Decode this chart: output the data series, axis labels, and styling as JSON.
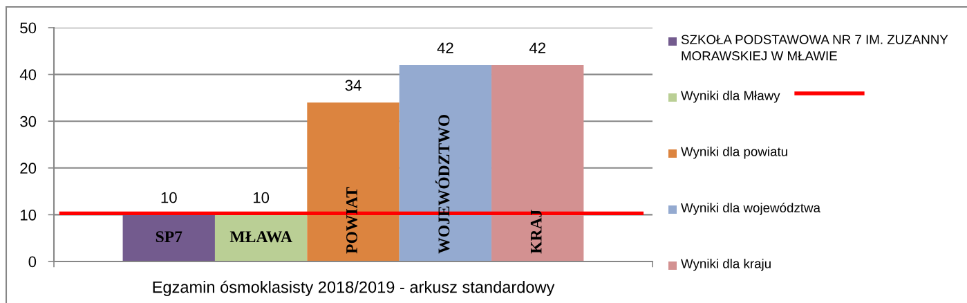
{
  "chart_data": {
    "type": "bar",
    "categories": [
      "Egzamin ósmoklasisty 2018/2019 - arkusz standardowy"
    ],
    "series": [
      {
        "name": "SZKOŁA PODSTAWOWA NR 7 IM. ZUZANNY MORAWSKIEJ W MŁAWIE",
        "color": "#735b8e",
        "values": [
          10
        ]
      },
      {
        "name": "Wyniki dla Mławy",
        "color": "#bacf95",
        "values": [
          10
        ]
      },
      {
        "name": "Wyniki dla powiatu",
        "color": "#dc843f",
        "values": [
          34
        ]
      },
      {
        "name": "Wyniki dla województwa",
        "color": "#94aad0",
        "values": [
          42
        ]
      },
      {
        "name": "Wyniki dla kraju",
        "color": "#d39191",
        "values": [
          42
        ]
      }
    ],
    "ylim": [
      0,
      50
    ],
    "yticks": [
      0,
      10,
      20,
      30,
      40,
      50
    ],
    "grid": "y",
    "legend": "right",
    "data_labels": true,
    "annotations": [
      "SP7",
      "MŁAWA",
      "POWIAT",
      "WOJEWÓDZTWO",
      "KRAJ"
    ],
    "ref_lines": [
      {
        "axis": "y",
        "value": 10.3,
        "color": "#ff0000"
      }
    ]
  }
}
